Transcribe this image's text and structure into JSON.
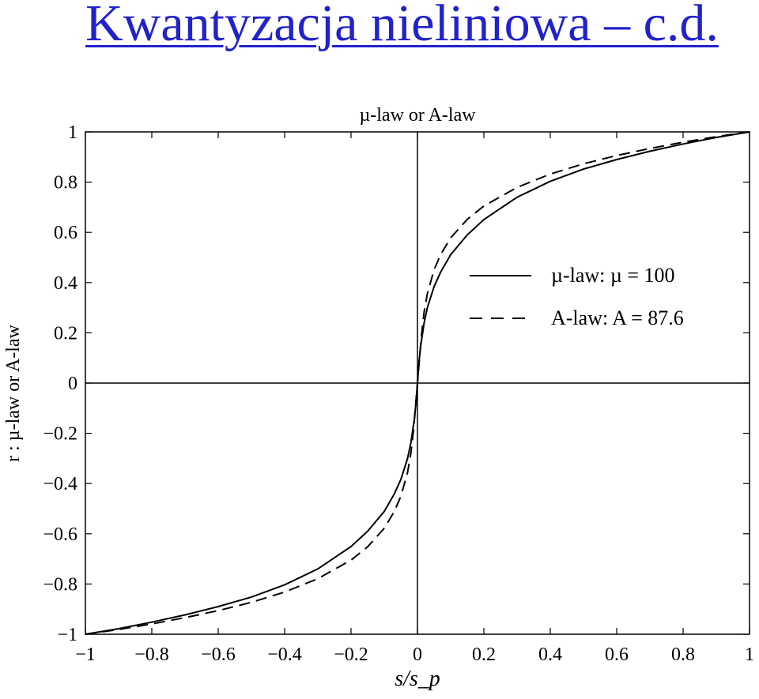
{
  "slide": {
    "title": "Kwantyzacja nieliniowa – c.d."
  },
  "chart_data": {
    "type": "line",
    "title": "µ-law or A-law",
    "xlabel": "s/s_p",
    "ylabel": "r : µ-law or A-law",
    "xlim": [
      -1,
      1
    ],
    "ylim": [
      -1,
      1
    ],
    "x_ticks": [
      -1,
      -0.8,
      -0.6,
      -0.4,
      -0.2,
      0,
      0.2,
      0.4,
      0.6,
      0.8,
      1
    ],
    "y_ticks": [
      -1,
      -0.8,
      -0.6,
      -0.4,
      -0.2,
      0,
      0.2,
      0.4,
      0.6,
      0.8,
      1
    ],
    "x_tick_labels": [
      "−1",
      "−0.8",
      "−0.6",
      "−0.4",
      "−0.2",
      "0",
      "0.2",
      "0.4",
      "0.6",
      "0.8",
      "1"
    ],
    "y_tick_labels": [
      "−1",
      "−0.8",
      "−0.6",
      "−0.4",
      "−0.2",
      "0",
      "0.2",
      "0.4",
      "0.6",
      "0.8",
      "1"
    ],
    "grid": false,
    "legend_position": "right-center",
    "series": [
      {
        "name": "µ-law: µ = 100",
        "style": "solid",
        "x": [
          -1,
          -0.9,
          -0.8,
          -0.7,
          -0.6,
          -0.5,
          -0.4,
          -0.3,
          -0.2,
          -0.15,
          -0.1,
          -0.07,
          -0.05,
          -0.03,
          -0.02,
          -0.01,
          -0.005,
          0,
          0.005,
          0.01,
          0.02,
          0.03,
          0.05,
          0.07,
          0.1,
          0.15,
          0.2,
          0.3,
          0.4,
          0.5,
          0.6,
          0.7,
          0.8,
          0.9,
          1
        ],
        "y": [
          -1,
          -0.978,
          -0.952,
          -0.923,
          -0.89,
          -0.852,
          -0.803,
          -0.74,
          -0.651,
          -0.59,
          -0.511,
          -0.442,
          -0.384,
          -0.301,
          -0.239,
          -0.15,
          -0.088,
          0,
          0.088,
          0.15,
          0.239,
          0.301,
          0.384,
          0.442,
          0.511,
          0.59,
          0.651,
          0.74,
          0.803,
          0.852,
          0.89,
          0.923,
          0.952,
          0.978,
          1
        ]
      },
      {
        "name": "A-law: A = 87.6",
        "style": "dashed",
        "x": [
          -1,
          -0.9,
          -0.8,
          -0.7,
          -0.6,
          -0.5,
          -0.4,
          -0.3,
          -0.2,
          -0.15,
          -0.1,
          -0.07,
          -0.05,
          -0.03,
          -0.02,
          -0.0114,
          -0.005,
          0,
          0.005,
          0.0114,
          0.02,
          0.03,
          0.05,
          0.07,
          0.1,
          0.15,
          0.2,
          0.3,
          0.4,
          0.5,
          0.6,
          0.7,
          0.8,
          0.9,
          1
        ],
        "y": [
          -1,
          -0.981,
          -0.959,
          -0.934,
          -0.906,
          -0.873,
          -0.832,
          -0.779,
          -0.705,
          -0.652,
          -0.578,
          -0.512,
          -0.451,
          -0.357,
          -0.282,
          -0.182,
          -0.08,
          0,
          0.08,
          0.182,
          0.282,
          0.357,
          0.451,
          0.512,
          0.578,
          0.652,
          0.705,
          0.779,
          0.832,
          0.873,
          0.906,
          0.934,
          0.959,
          0.981,
          1
        ]
      }
    ]
  }
}
